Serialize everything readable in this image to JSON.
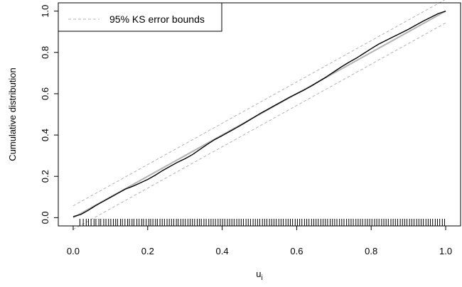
{
  "chart_data": {
    "type": "line",
    "title": "",
    "xlabel": "u",
    "xlabel_subscript": "i",
    "ylabel": "Cumulative distribution",
    "xlim": [
      -0.04,
      1.04
    ],
    "ylim": [
      -0.04,
      1.04
    ],
    "x_ticks": [
      "0.0",
      "0.2",
      "0.4",
      "0.6",
      "0.8",
      "1.0"
    ],
    "y_ticks": [
      "0.0",
      "0.2",
      "0.4",
      "0.6",
      "0.8",
      "1.0"
    ],
    "grid": false,
    "legend": {
      "position": "top-left",
      "entries": [
        {
          "label": "95% KS error bounds",
          "style": "dashed",
          "color": "#b3b3b3"
        }
      ]
    },
    "series": [
      {
        "role": "reference",
        "color": "#b3b3b3",
        "style": "solid",
        "x": [
          0.0,
          1.0
        ],
        "y": [
          0.0,
          1.0
        ]
      },
      {
        "role": "upper-bound",
        "color": "#b3b3b3",
        "style": "dashed",
        "x": [
          0.0,
          1.0
        ],
        "y": [
          0.057,
          1.057
        ]
      },
      {
        "role": "lower-bound",
        "color": "#b3b3b3",
        "style": "dashed",
        "x": [
          0.0,
          1.0
        ],
        "y": [
          -0.057,
          0.943
        ]
      },
      {
        "role": "empirical-cdf",
        "color": "#000000",
        "style": "solid",
        "x": [
          0.0,
          0.02,
          0.04,
          0.06,
          0.08,
          0.1,
          0.12,
          0.14,
          0.16,
          0.18,
          0.2,
          0.22,
          0.24,
          0.26,
          0.28,
          0.3,
          0.32,
          0.34,
          0.36,
          0.38,
          0.4,
          0.42,
          0.44,
          0.46,
          0.48,
          0.5,
          0.52,
          0.54,
          0.56,
          0.58,
          0.6,
          0.62,
          0.64,
          0.66,
          0.68,
          0.7,
          0.72,
          0.74,
          0.76,
          0.78,
          0.8,
          0.82,
          0.84,
          0.86,
          0.88,
          0.9,
          0.92,
          0.94,
          0.96,
          0.98,
          1.0
        ],
        "y": [
          0.005,
          0.015,
          0.035,
          0.058,
          0.078,
          0.098,
          0.118,
          0.138,
          0.152,
          0.168,
          0.185,
          0.205,
          0.228,
          0.248,
          0.268,
          0.285,
          0.305,
          0.33,
          0.355,
          0.378,
          0.397,
          0.417,
          0.437,
          0.458,
          0.48,
          0.502,
          0.522,
          0.542,
          0.562,
          0.582,
          0.6,
          0.618,
          0.638,
          0.66,
          0.682,
          0.706,
          0.73,
          0.752,
          0.772,
          0.795,
          0.818,
          0.84,
          0.858,
          0.876,
          0.894,
          0.912,
          0.932,
          0.952,
          0.97,
          0.988,
          1.0
        ]
      }
    ],
    "rug": [
      0.018,
      0.027,
      0.035,
      0.041,
      0.048,
      0.056,
      0.061,
      0.069,
      0.074,
      0.082,
      0.088,
      0.095,
      0.101,
      0.108,
      0.114,
      0.119,
      0.127,
      0.132,
      0.139,
      0.146,
      0.151,
      0.158,
      0.163,
      0.171,
      0.177,
      0.184,
      0.189,
      0.196,
      0.203,
      0.208,
      0.214,
      0.221,
      0.226,
      0.233,
      0.239,
      0.245,
      0.252,
      0.258,
      0.264,
      0.27,
      0.277,
      0.282,
      0.289,
      0.295,
      0.301,
      0.308,
      0.314,
      0.32,
      0.326,
      0.333,
      0.339,
      0.344,
      0.351,
      0.357,
      0.364,
      0.37,
      0.376,
      0.382,
      0.389,
      0.395,
      0.401,
      0.407,
      0.414,
      0.42,
      0.426,
      0.432,
      0.439,
      0.445,
      0.451,
      0.457,
      0.464,
      0.47,
      0.476,
      0.483,
      0.489,
      0.495,
      0.501,
      0.508,
      0.514,
      0.52,
      0.527,
      0.533,
      0.539,
      0.545,
      0.552,
      0.558,
      0.564,
      0.571,
      0.577,
      0.583,
      0.589,
      0.596,
      0.602,
      0.608,
      0.614,
      0.621,
      0.627,
      0.633,
      0.64,
      0.646,
      0.652,
      0.658,
      0.665,
      0.671,
      0.677,
      0.683,
      0.69,
      0.696,
      0.702,
      0.708,
      0.715,
      0.721,
      0.727,
      0.734,
      0.74,
      0.746,
      0.752,
      0.759,
      0.765,
      0.771,
      0.777,
      0.784,
      0.79,
      0.796,
      0.802,
      0.809,
      0.815,
      0.821,
      0.828,
      0.834,
      0.84,
      0.846,
      0.853,
      0.859,
      0.865,
      0.871,
      0.878,
      0.884,
      0.89,
      0.896,
      0.903,
      0.909,
      0.915,
      0.922,
      0.928,
      0.934,
      0.94,
      0.947,
      0.953,
      0.959,
      0.965,
      0.972,
      0.978,
      0.984,
      0.991,
      0.997
    ]
  }
}
